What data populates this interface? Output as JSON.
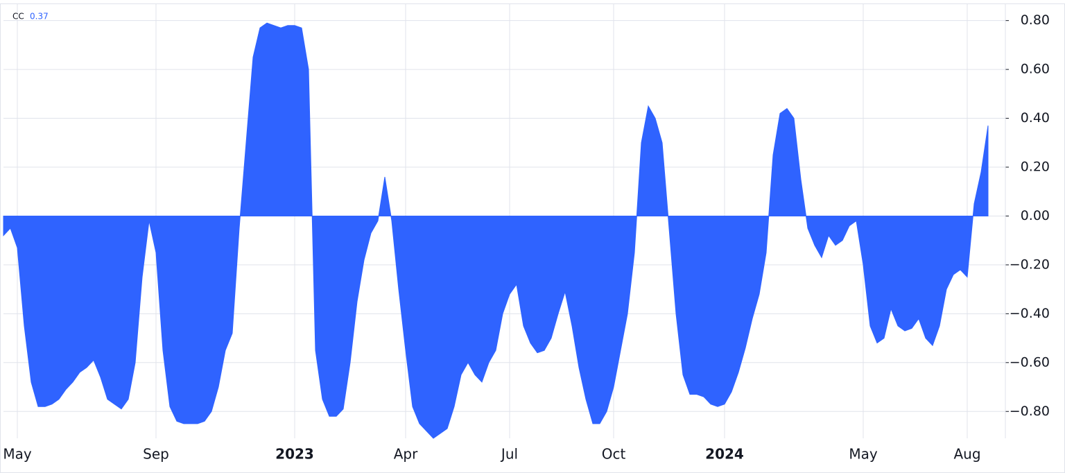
{
  "chart_data": {
    "type": "area",
    "title": "CC",
    "color": "#2f63ff",
    "grid": true,
    "categories": [
      null,
      null,
      "May",
      null,
      null,
      null,
      null,
      null,
      null,
      null,
      null,
      null,
      null,
      null,
      null,
      null,
      null,
      null,
      null,
      null,
      null,
      null,
      "Sep",
      null,
      null,
      null,
      null,
      null,
      null,
      null,
      null,
      null,
      null,
      null,
      null,
      null,
      null,
      null,
      null,
      null,
      null,
      null,
      "2023",
      null,
      null,
      null,
      null,
      null,
      null,
      null,
      null,
      null,
      null,
      null,
      null,
      null,
      null,
      null,
      "Apr",
      null,
      null,
      null,
      null,
      null,
      null,
      null,
      null,
      null,
      null,
      null,
      null,
      null,
      null,
      "Jul",
      null,
      null,
      null,
      null,
      null,
      null,
      null,
      null,
      null,
      null,
      null,
      null,
      null,
      null,
      "Oct",
      null,
      null,
      null,
      null,
      null,
      null,
      null,
      null,
      null,
      null,
      null,
      null,
      null,
      null,
      null,
      "2024",
      null,
      null,
      null,
      null,
      null,
      null,
      null,
      null,
      null,
      null,
      null,
      null,
      null,
      null,
      null,
      null,
      null,
      null,
      null,
      "May",
      null,
      null,
      null,
      null,
      null,
      null,
      null,
      null,
      null,
      null,
      null,
      null,
      null,
      null,
      "Aug",
      null,
      null,
      null
    ],
    "values": [
      -0.08,
      -0.05,
      -0.13,
      -0.45,
      -0.68,
      -0.78,
      -0.78,
      -0.77,
      -0.75,
      -0.71,
      -0.68,
      -0.64,
      -0.62,
      -0.59,
      -0.66,
      -0.75,
      -0.77,
      -0.79,
      -0.75,
      -0.6,
      -0.25,
      -0.02,
      -0.15,
      -0.55,
      -0.78,
      -0.84,
      -0.85,
      -0.85,
      -0.85,
      -0.84,
      -0.8,
      -0.7,
      -0.55,
      -0.48,
      -0.05,
      0.3,
      0.65,
      0.77,
      0.79,
      0.78,
      0.77,
      0.78,
      0.78,
      0.77,
      0.6,
      -0.55,
      -0.75,
      -0.82,
      -0.82,
      -0.79,
      -0.6,
      -0.35,
      -0.18,
      -0.07,
      -0.02,
      0.16,
      -0.02,
      -0.3,
      -0.55,
      -0.78,
      -0.85,
      -0.88,
      -0.91,
      -0.89,
      -0.87,
      -0.78,
      -0.65,
      -0.6,
      -0.65,
      -0.68,
      -0.6,
      -0.55,
      -0.4,
      -0.32,
      -0.28,
      -0.45,
      -0.52,
      -0.56,
      -0.55,
      -0.5,
      -0.4,
      -0.31,
      -0.45,
      -0.62,
      -0.75,
      -0.85,
      -0.85,
      -0.8,
      -0.7,
      -0.55,
      -0.4,
      -0.15,
      0.3,
      0.45,
      0.4,
      0.3,
      -0.05,
      -0.4,
      -0.65,
      -0.73,
      -0.73,
      -0.74,
      -0.77,
      -0.78,
      -0.77,
      -0.72,
      -0.64,
      -0.54,
      -0.42,
      -0.32,
      -0.15,
      0.25,
      0.42,
      0.44,
      0.4,
      0.15,
      -0.05,
      -0.12,
      -0.17,
      -0.08,
      -0.12,
      -0.1,
      -0.04,
      -0.02,
      -0.2,
      -0.45,
      -0.52,
      -0.5,
      -0.38,
      -0.45,
      -0.47,
      -0.46,
      -0.42,
      -0.5,
      -0.53,
      -0.45,
      -0.3,
      -0.24,
      -0.22,
      -0.25,
      0.05,
      0.18,
      0.37
    ],
    "ylim": [
      -0.91,
      0.87
    ],
    "yticks": [
      {
        "value": -0.8,
        "label": "−0.80"
      },
      {
        "value": -0.6,
        "label": "−0.60"
      },
      {
        "value": -0.4,
        "label": "−0.40"
      },
      {
        "value": -0.2,
        "label": "−0.20"
      },
      {
        "value": 0,
        "label": "0.00"
      },
      {
        "value": 0.2,
        "label": "0.20"
      },
      {
        "value": 0.4,
        "label": "0.40"
      },
      {
        "value": 0.6,
        "label": "0.60"
      },
      {
        "value": 0.8,
        "label": "0.80"
      }
    ]
  }
}
